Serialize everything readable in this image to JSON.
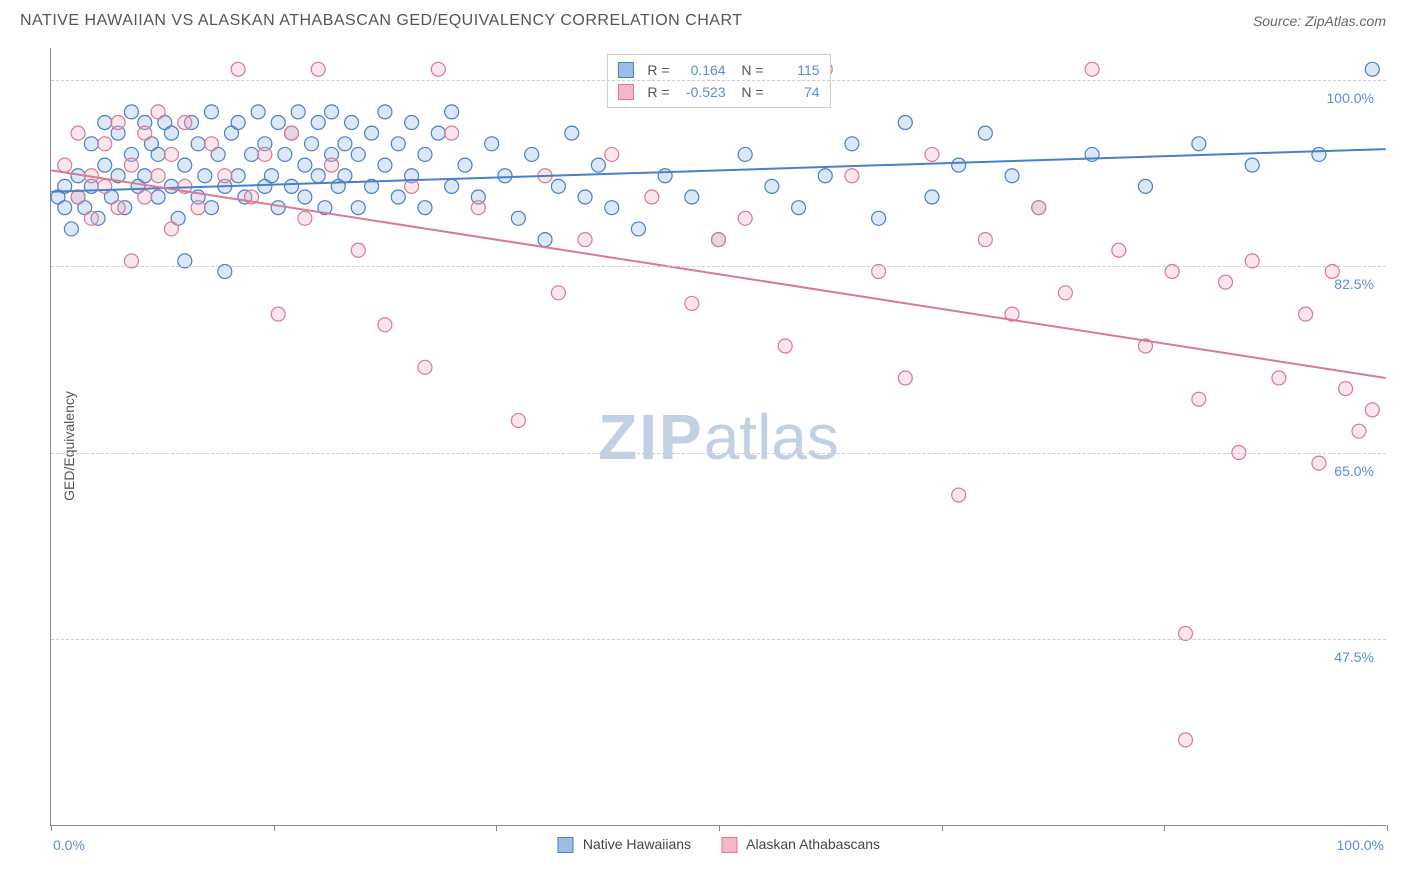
{
  "header": {
    "title": "NATIVE HAWAIIAN VS ALASKAN ATHABASCAN GED/EQUIVALENCY CORRELATION CHART",
    "source": "Source: ZipAtlas.com"
  },
  "watermark": {
    "zip": "ZIP",
    "atlas": "atlas"
  },
  "chart": {
    "type": "scatter",
    "background_color": "#ffffff",
    "grid_color": "#cccccc",
    "axis_color": "#888888",
    "ylabel": "GED/Equivalency",
    "label_fontsize": 14,
    "xlim": [
      0,
      100
    ],
    "ylim": [
      30,
      103
    ],
    "y_gridlines": [
      47.5,
      65.0,
      82.5,
      100.0
    ],
    "y_ticklabels": [
      "47.5%",
      "65.0%",
      "82.5%",
      "100.0%"
    ],
    "y_ticklabel_color": "#5b8dd6",
    "x_ticks": [
      0,
      16.67,
      33.33,
      50,
      66.67,
      83.33,
      100
    ],
    "x_axis_min_label": "0.0%",
    "x_axis_max_label": "100.0%",
    "marker_radius": 7,
    "marker_stroke_width": 1.2,
    "marker_fill_opacity": 0.35,
    "trendline_width": 2,
    "series": [
      {
        "name": "Native Hawaiians",
        "legend_label": "Native Hawaiians",
        "color_stroke": "#4a7fc9",
        "color_fill": "#9ebce5",
        "R_label": "0.164",
        "N_label": "115",
        "trendline": {
          "x1": 0,
          "y1": 89.5,
          "x2": 100,
          "y2": 93.5
        },
        "points": [
          [
            0.5,
            89
          ],
          [
            1,
            88
          ],
          [
            1,
            90
          ],
          [
            1.5,
            86
          ],
          [
            2,
            91
          ],
          [
            2,
            89
          ],
          [
            2.5,
            88
          ],
          [
            3,
            94
          ],
          [
            3,
            90
          ],
          [
            3.5,
            87
          ],
          [
            4,
            92
          ],
          [
            4,
            96
          ],
          [
            4.5,
            89
          ],
          [
            5,
            95
          ],
          [
            5,
            91
          ],
          [
            5.5,
            88
          ],
          [
            6,
            97
          ],
          [
            6,
            93
          ],
          [
            6.5,
            90
          ],
          [
            7,
            96
          ],
          [
            7,
            91
          ],
          [
            7.5,
            94
          ],
          [
            8,
            89
          ],
          [
            8,
            93
          ],
          [
            8.5,
            96
          ],
          [
            9,
            90
          ],
          [
            9,
            95
          ],
          [
            9.5,
            87
          ],
          [
            10,
            83
          ],
          [
            10,
            92
          ],
          [
            10.5,
            96
          ],
          [
            11,
            89
          ],
          [
            11,
            94
          ],
          [
            11.5,
            91
          ],
          [
            12,
            97
          ],
          [
            12,
            88
          ],
          [
            12.5,
            93
          ],
          [
            13,
            90
          ],
          [
            13,
            82
          ],
          [
            13.5,
            95
          ],
          [
            14,
            91
          ],
          [
            14,
            96
          ],
          [
            14.5,
            89
          ],
          [
            15,
            93
          ],
          [
            15.5,
            97
          ],
          [
            16,
            90
          ],
          [
            16,
            94
          ],
          [
            16.5,
            91
          ],
          [
            17,
            96
          ],
          [
            17,
            88
          ],
          [
            17.5,
            93
          ],
          [
            18,
            95
          ],
          [
            18,
            90
          ],
          [
            18.5,
            97
          ],
          [
            19,
            92
          ],
          [
            19,
            89
          ],
          [
            19.5,
            94
          ],
          [
            20,
            91
          ],
          [
            20,
            96
          ],
          [
            20.5,
            88
          ],
          [
            21,
            93
          ],
          [
            21,
            97
          ],
          [
            21.5,
            90
          ],
          [
            22,
            94
          ],
          [
            22,
            91
          ],
          [
            22.5,
            96
          ],
          [
            23,
            88
          ],
          [
            23,
            93
          ],
          [
            24,
            95
          ],
          [
            24,
            90
          ],
          [
            25,
            97
          ],
          [
            25,
            92
          ],
          [
            26,
            89
          ],
          [
            26,
            94
          ],
          [
            27,
            91
          ],
          [
            27,
            96
          ],
          [
            28,
            88
          ],
          [
            28,
            93
          ],
          [
            29,
            95
          ],
          [
            30,
            90
          ],
          [
            30,
            97
          ],
          [
            31,
            92
          ],
          [
            32,
            89
          ],
          [
            33,
            94
          ],
          [
            34,
            91
          ],
          [
            35,
            87
          ],
          [
            36,
            93
          ],
          [
            37,
            85
          ],
          [
            38,
            90
          ],
          [
            39,
            95
          ],
          [
            40,
            89
          ],
          [
            41,
            92
          ],
          [
            42,
            88
          ],
          [
            44,
            86
          ],
          [
            46,
            91
          ],
          [
            48,
            89
          ],
          [
            50,
            85
          ],
          [
            52,
            93
          ],
          [
            54,
            90
          ],
          [
            56,
            88
          ],
          [
            58,
            91
          ],
          [
            60,
            94
          ],
          [
            62,
            87
          ],
          [
            64,
            96
          ],
          [
            66,
            89
          ],
          [
            68,
            92
          ],
          [
            70,
            95
          ],
          [
            72,
            91
          ],
          [
            74,
            88
          ],
          [
            78,
            93
          ],
          [
            82,
            90
          ],
          [
            86,
            94
          ],
          [
            90,
            92
          ],
          [
            95,
            93
          ],
          [
            99,
            101
          ]
        ]
      },
      {
        "name": "Alaskan Athabascans",
        "legend_label": "Alaskan Athabascans",
        "color_stroke": "#d87a94",
        "color_fill": "#f2b8c6",
        "R_label": "-0.523",
        "N_label": "74",
        "trendline": {
          "x1": 0,
          "y1": 91.5,
          "x2": 100,
          "y2": 72
        },
        "points": [
          [
            1,
            92
          ],
          [
            2,
            89
          ],
          [
            2,
            95
          ],
          [
            3,
            91
          ],
          [
            3,
            87
          ],
          [
            4,
            94
          ],
          [
            4,
            90
          ],
          [
            5,
            96
          ],
          [
            5,
            88
          ],
          [
            6,
            92
          ],
          [
            6,
            83
          ],
          [
            7,
            95
          ],
          [
            7,
            89
          ],
          [
            8,
            91
          ],
          [
            8,
            97
          ],
          [
            9,
            86
          ],
          [
            9,
            93
          ],
          [
            10,
            90
          ],
          [
            10,
            96
          ],
          [
            11,
            88
          ],
          [
            12,
            94
          ],
          [
            13,
            91
          ],
          [
            14,
            101
          ],
          [
            15,
            89
          ],
          [
            16,
            93
          ],
          [
            17,
            78
          ],
          [
            18,
            95
          ],
          [
            19,
            87
          ],
          [
            20,
            101
          ],
          [
            21,
            92
          ],
          [
            23,
            84
          ],
          [
            25,
            77
          ],
          [
            27,
            90
          ],
          [
            28,
            73
          ],
          [
            29,
            101
          ],
          [
            30,
            95
          ],
          [
            32,
            88
          ],
          [
            35,
            68
          ],
          [
            37,
            91
          ],
          [
            38,
            80
          ],
          [
            40,
            85
          ],
          [
            42,
            93
          ],
          [
            45,
            89
          ],
          [
            48,
            79
          ],
          [
            50,
            85
          ],
          [
            52,
            87
          ],
          [
            55,
            75
          ],
          [
            58,
            101
          ],
          [
            60,
            91
          ],
          [
            62,
            82
          ],
          [
            64,
            72
          ],
          [
            66,
            93
          ],
          [
            68,
            61
          ],
          [
            70,
            85
          ],
          [
            72,
            78
          ],
          [
            74,
            88
          ],
          [
            76,
            80
          ],
          [
            78,
            101
          ],
          [
            80,
            84
          ],
          [
            82,
            75
          ],
          [
            84,
            82
          ],
          [
            85,
            48
          ],
          [
            86,
            70
          ],
          [
            88,
            81
          ],
          [
            89,
            65
          ],
          [
            90,
            83
          ],
          [
            92,
            72
          ],
          [
            94,
            78
          ],
          [
            95,
            64
          ],
          [
            96,
            82
          ],
          [
            97,
            71
          ],
          [
            98,
            67
          ],
          [
            99,
            69
          ],
          [
            85,
            38
          ]
        ]
      }
    ],
    "legend_top": {
      "rows": [
        {
          "swatch_stroke": "#4a7fc9",
          "swatch_fill": "#9ebce5",
          "R": "0.164",
          "N": "115"
        },
        {
          "swatch_stroke": "#d87a94",
          "swatch_fill": "#f2b8c6",
          "R": "-0.523",
          "N": "74"
        }
      ]
    }
  }
}
